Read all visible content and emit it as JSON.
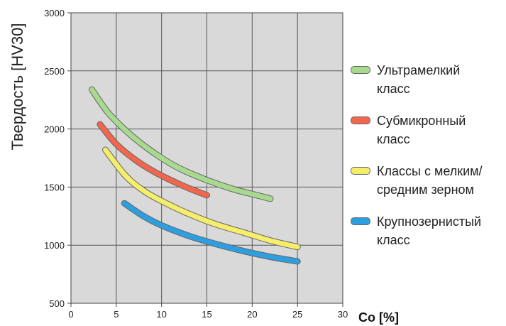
{
  "chart_data": {
    "type": "line",
    "xlabel": "Co [%]",
    "ylabel": "Твердость [HV30]",
    "xlim": [
      0,
      30
    ],
    "ylim": [
      500,
      3000
    ],
    "xticks": [
      0,
      5,
      10,
      15,
      20,
      25,
      30
    ],
    "yticks": [
      500,
      1000,
      1500,
      2000,
      2500,
      3000
    ],
    "grid": true,
    "background": "#d9d9d9",
    "legend_position": "right",
    "series": [
      {
        "name": "Ультрамелкий\nкласс",
        "color": "#a7d98f",
        "x": [
          2.3,
          4,
          6,
          8,
          10,
          12,
          15,
          18,
          20,
          22
        ],
        "y": [
          2340,
          2150,
          1990,
          1860,
          1750,
          1660,
          1560,
          1480,
          1440,
          1400
        ]
      },
      {
        "name": "Субмикронный\nкласс",
        "color": "#f2664e",
        "x": [
          3.2,
          5,
          7,
          9,
          11,
          13,
          15
        ],
        "y": [
          2040,
          1870,
          1740,
          1640,
          1560,
          1490,
          1430
        ]
      },
      {
        "name": "Классы с мелким/\nсредним зерном",
        "color": "#f5ee6b",
        "x": [
          3.8,
          6,
          8,
          10,
          13,
          16,
          19,
          22,
          25
        ],
        "y": [
          1820,
          1600,
          1470,
          1380,
          1270,
          1180,
          1110,
          1040,
          985
        ]
      },
      {
        "name": "Крупнозернистый\nкласс",
        "color": "#2d9fe0",
        "x": [
          5.9,
          8,
          10,
          13,
          16,
          19,
          22,
          25
        ],
        "y": [
          1360,
          1250,
          1170,
          1080,
          1010,
          950,
          900,
          860
        ]
      }
    ]
  }
}
